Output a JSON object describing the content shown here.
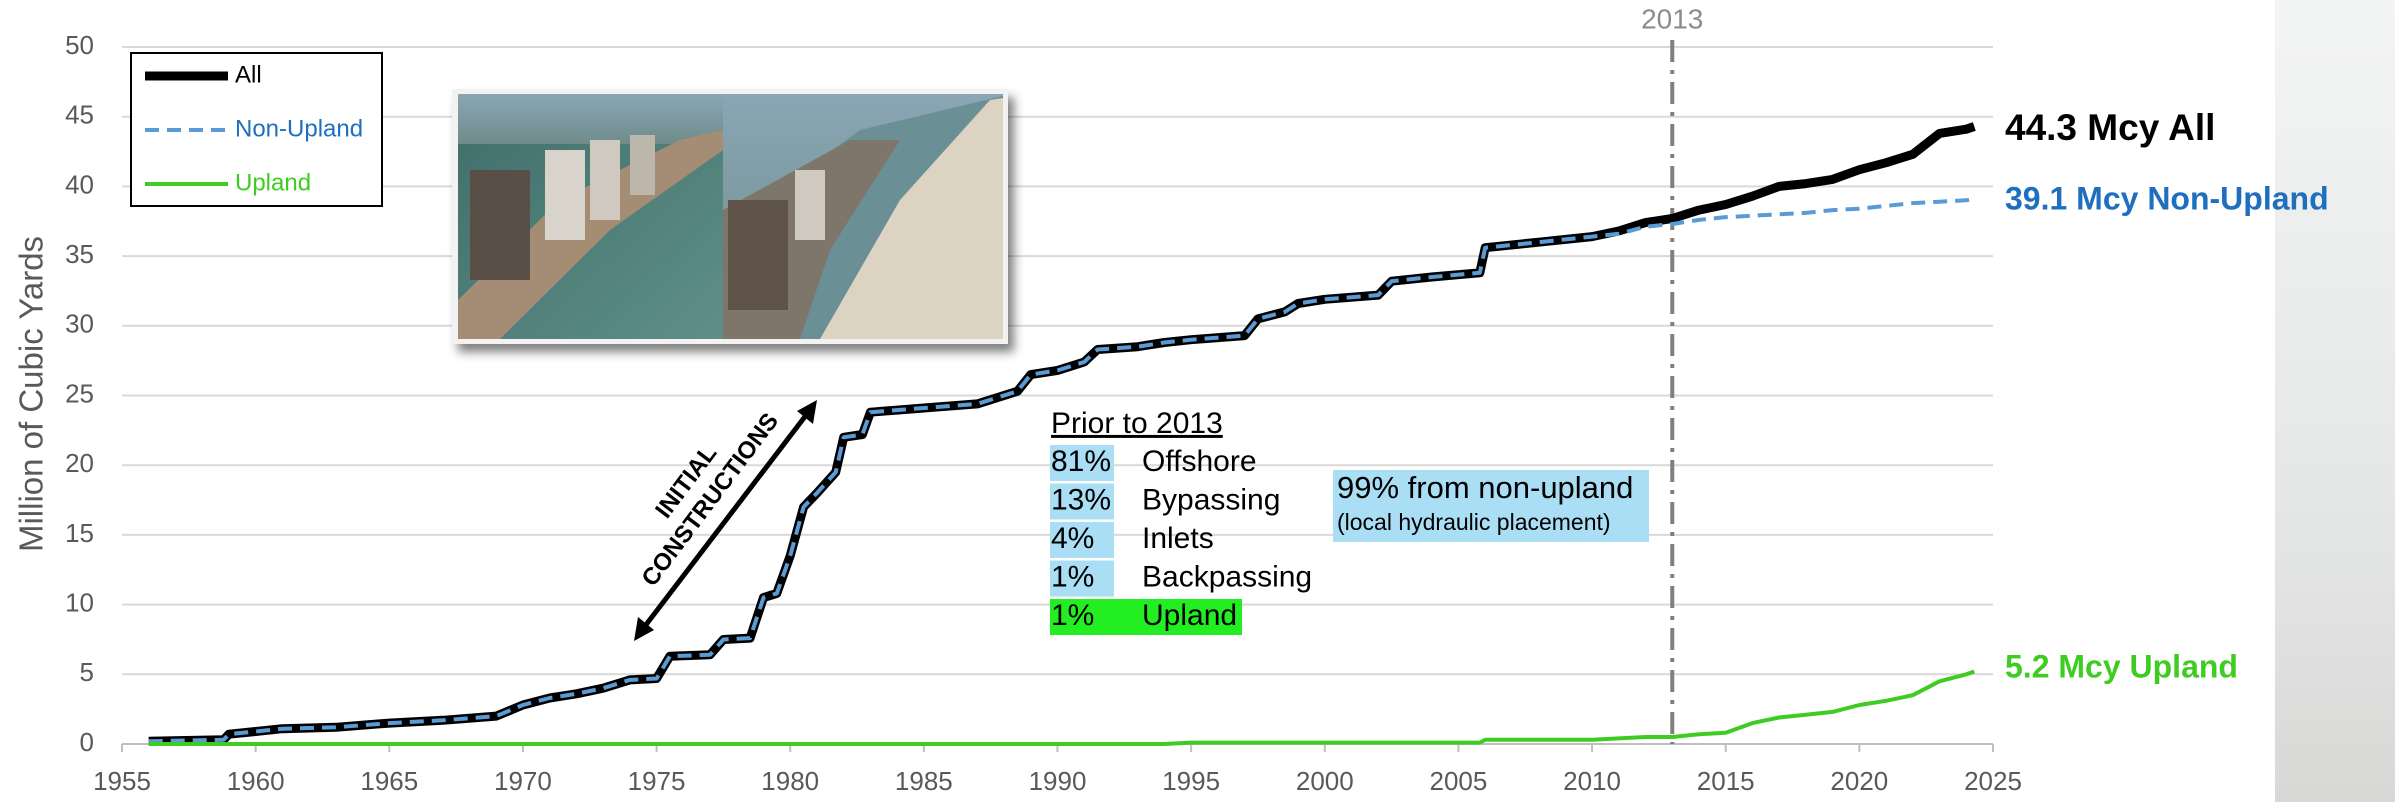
{
  "chart_data": {
    "type": "line",
    "y_label": "Million of Cubic Yards",
    "x": [
      1956,
      1958.8,
      1959,
      1960,
      1961,
      1963,
      1965,
      1967,
      1969,
      1970,
      1971,
      1972,
      1973,
      1974,
      1975,
      1975.5,
      1977,
      1977.5,
      1978.5,
      1979,
      1979.5,
      1980,
      1980.5,
      1981,
      1981.7,
      1982,
      1982.7,
      1983,
      1985,
      1987,
      1988.5,
      1989,
      1990,
      1991,
      1991.5,
      1993,
      1994,
      1995,
      1997,
      1997.5,
      1998.5,
      1999,
      2000,
      2002,
      2002.5,
      2004,
      2005.8,
      2006,
      2008,
      2010,
      2011,
      2012,
      2013,
      2014,
      2015,
      2016,
      2017,
      2018,
      2019,
      2020,
      2021,
      2022,
      2023,
      2024,
      2024.3
    ],
    "series": [
      {
        "name": "All",
        "color": "#000000",
        "dash": false,
        "width": 9,
        "values": [
          0.2,
          0.3,
          0.7,
          0.9,
          1.1,
          1.2,
          1.5,
          1.7,
          2.0,
          2.8,
          3.3,
          3.6,
          4.0,
          4.6,
          4.7,
          6.3,
          6.4,
          7.5,
          7.6,
          10.5,
          10.8,
          13.5,
          17,
          18,
          19.5,
          22,
          22.2,
          23.8,
          24.1,
          24.4,
          25.3,
          26.5,
          26.8,
          27.4,
          28.3,
          28.5,
          28.8,
          29.0,
          29.3,
          30.5,
          31,
          31.6,
          31.9,
          32.2,
          33.2,
          33.5,
          33.8,
          35.6,
          36.0,
          36.4,
          36.8,
          37.4,
          37.7,
          38.3,
          38.7,
          39.3,
          40.0,
          40.2,
          40.5,
          41.2,
          41.7,
          42.3,
          43.8,
          44.1,
          44.3
        ]
      },
      {
        "name": "Non-Upland",
        "color": "#5b9bd5",
        "dash": true,
        "width": 4,
        "values": [
          0.2,
          0.3,
          0.7,
          0.9,
          1.1,
          1.2,
          1.5,
          1.7,
          2.0,
          2.8,
          3.3,
          3.6,
          4.0,
          4.6,
          4.7,
          6.3,
          6.4,
          7.5,
          7.6,
          10.5,
          10.8,
          13.5,
          17,
          18,
          19.5,
          22,
          22.2,
          23.8,
          24.1,
          24.4,
          25.3,
          26.5,
          26.8,
          27.4,
          28.3,
          28.5,
          28.8,
          29.0,
          29.3,
          30.5,
          31,
          31.6,
          31.9,
          32.2,
          33.2,
          33.5,
          33.8,
          35.6,
          36.0,
          36.4,
          36.6,
          37.1,
          37.3,
          37.6,
          37.8,
          37.9,
          38.0,
          38.1,
          38.3,
          38.4,
          38.6,
          38.8,
          38.9,
          39.0,
          39.1
        ]
      },
      {
        "name": "Upland",
        "color": "#3fcc22",
        "dash": false,
        "width": 4,
        "values": [
          0,
          0,
          0,
          0,
          0,
          0,
          0,
          0,
          0,
          0,
          0,
          0,
          0,
          0,
          0,
          0,
          0,
          0,
          0,
          0,
          0,
          0,
          0,
          0,
          0,
          0,
          0,
          0,
          0,
          0,
          0,
          0,
          0,
          0,
          0,
          0,
          0,
          0.1,
          0.1,
          0.1,
          0.1,
          0.1,
          0.1,
          0.1,
          0.1,
          0.1,
          0.1,
          0.3,
          0.3,
          0.3,
          0.4,
          0.5,
          0.5,
          0.7,
          0.8,
          1.5,
          1.9,
          2.1,
          2.3,
          2.8,
          3.1,
          3.5,
          4.5,
          5.0,
          5.2
        ]
      }
    ],
    "xlim": [
      1955,
      2025
    ],
    "xticks": [
      1955,
      1960,
      1965,
      1970,
      1975,
      1980,
      1985,
      1990,
      1995,
      2000,
      2005,
      2010,
      2015,
      2020,
      2025
    ],
    "ylim": [
      0,
      50
    ],
    "yticks": [
      0,
      5,
      10,
      15,
      20,
      25,
      30,
      35,
      40,
      45,
      50
    ],
    "grid": true,
    "legend": "upper left",
    "vline_x": 2013,
    "end_labels": [
      "44.3 Mcy All",
      "39.1 Mcy Non-Upland",
      "5.2 Mcy Upland"
    ],
    "arrow_text": [
      "INITIAL",
      "CONSTRUCTIONS"
    ],
    "breakdown": {
      "title": "Prior to 2013",
      "rows": [
        [
          "81%",
          "Offshore"
        ],
        [
          "13%",
          "Bypassing"
        ],
        [
          "4%",
          "Inlets"
        ],
        [
          "1%",
          "Backpassing"
        ],
        [
          "1%",
          "Upland"
        ]
      ]
    },
    "note": [
      "99% from non-upland",
      "(local hydraulic placement)"
    ]
  }
}
